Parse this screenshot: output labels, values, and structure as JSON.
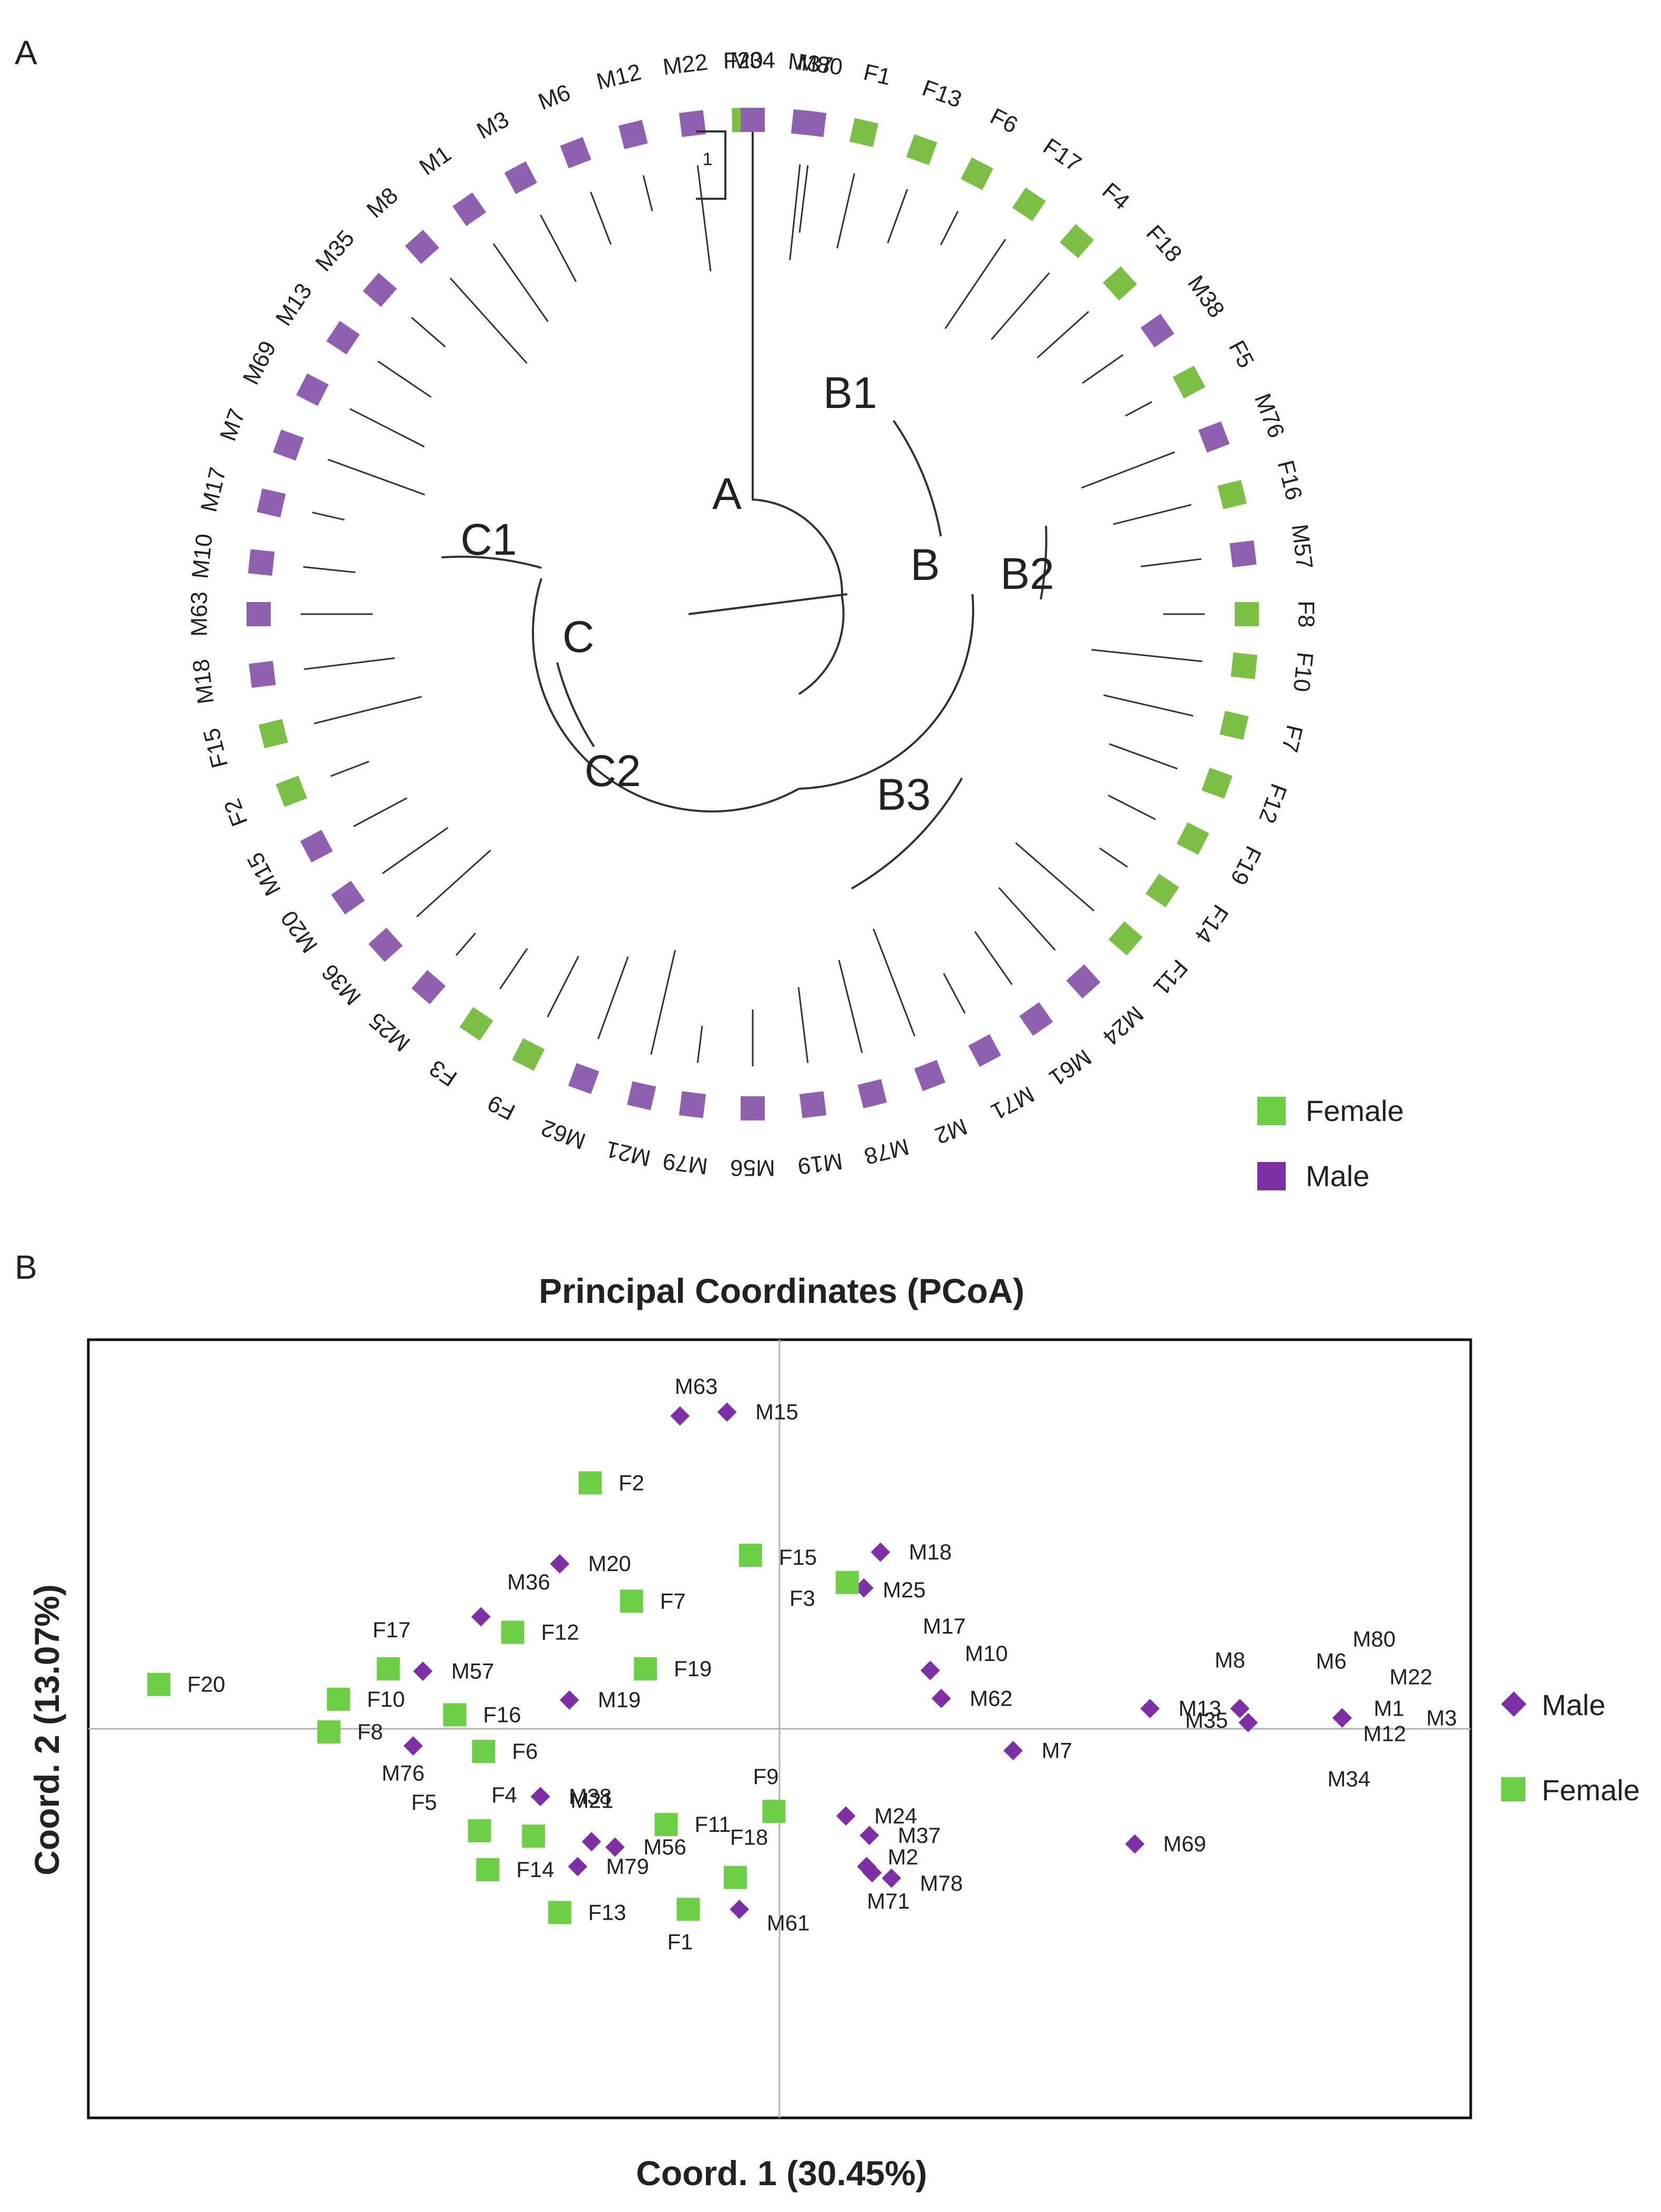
{
  "panels": {
    "a": "A",
    "b": "B"
  },
  "colors": {
    "female": "#6ccf45",
    "male": "#7d2fa6",
    "female_tree": "#7bbf45",
    "male_tree": "#8f5fb0",
    "line": "#333333"
  },
  "scale_bar": "1",
  "legend_a": [
    {
      "label": "Female",
      "group": "female"
    },
    {
      "label": "Male",
      "group": "male"
    }
  ],
  "legend_b": [
    {
      "label": "Male",
      "group": "male"
    },
    {
      "label": "Female",
      "group": "female"
    }
  ],
  "tree": {
    "tips": [
      {
        "label": "F20",
        "angle": -1,
        "group": "female"
      },
      {
        "label": "M37",
        "angle": 6,
        "group": "male"
      },
      {
        "label": "F1",
        "angle": 13,
        "group": "female"
      },
      {
        "label": "F13",
        "angle": 20,
        "group": "female"
      },
      {
        "label": "F6",
        "angle": 27,
        "group": "female"
      },
      {
        "label": "F17",
        "angle": 34,
        "group": "female"
      },
      {
        "label": "F4",
        "angle": 41,
        "group": "female"
      },
      {
        "label": "F18",
        "angle": 48,
        "group": "female"
      },
      {
        "label": "M38",
        "angle": 55,
        "group": "male"
      },
      {
        "label": "F5",
        "angle": 62,
        "group": "female"
      },
      {
        "label": "M76",
        "angle": 69,
        "group": "male"
      },
      {
        "label": "F16",
        "angle": 76,
        "group": "female"
      },
      {
        "label": "M57",
        "angle": 83,
        "group": "male"
      },
      {
        "label": "F8",
        "angle": 90,
        "group": "female"
      },
      {
        "label": "F10",
        "angle": 96,
        "group": "female"
      },
      {
        "label": "F7",
        "angle": 103,
        "group": "female"
      },
      {
        "label": "F12",
        "angle": 110,
        "group": "female"
      },
      {
        "label": "F19",
        "angle": 117,
        "group": "female"
      },
      {
        "label": "F14",
        "angle": 124,
        "group": "female"
      },
      {
        "label": "F11",
        "angle": 131,
        "group": "female"
      },
      {
        "label": "M24",
        "angle": 138,
        "group": "male"
      },
      {
        "label": "M61",
        "angle": 145,
        "group": "male"
      },
      {
        "label": "M71",
        "angle": 152,
        "group": "male"
      },
      {
        "label": "M2",
        "angle": 159,
        "group": "male"
      },
      {
        "label": "M78",
        "angle": 166,
        "group": "male"
      },
      {
        "label": "M19",
        "angle": 173,
        "group": "male"
      },
      {
        "label": "M56",
        "angle": 180,
        "group": "male"
      },
      {
        "label": "M79",
        "angle": 187,
        "group": "male"
      },
      {
        "label": "M21",
        "angle": 193,
        "group": "male"
      },
      {
        "label": "M62",
        "angle": 200,
        "group": "male"
      },
      {
        "label": "F9",
        "angle": 207,
        "group": "female"
      },
      {
        "label": "F3",
        "angle": 214,
        "group": "female"
      },
      {
        "label": "M25",
        "angle": 221,
        "group": "male"
      },
      {
        "label": "M36",
        "angle": 228,
        "group": "male"
      },
      {
        "label": "M20",
        "angle": 235,
        "group": "male"
      },
      {
        "label": "M15",
        "angle": 242,
        "group": "male"
      },
      {
        "label": "F2",
        "angle": 249,
        "group": "female"
      },
      {
        "label": "F15",
        "angle": 256,
        "group": "female"
      },
      {
        "label": "M18",
        "angle": 263,
        "group": "male"
      },
      {
        "label": "M63",
        "angle": 270,
        "group": "male"
      },
      {
        "label": "M10",
        "angle": 276,
        "group": "male"
      },
      {
        "label": "M17",
        "angle": 283,
        "group": "male"
      },
      {
        "label": "M7",
        "angle": 290,
        "group": "male"
      },
      {
        "label": "M69",
        "angle": 297,
        "group": "male"
      },
      {
        "label": "M13",
        "angle": 304,
        "group": "male"
      },
      {
        "label": "M35",
        "angle": 311,
        "group": "male"
      },
      {
        "label": "M8",
        "angle": 318,
        "group": "male"
      },
      {
        "label": "M1",
        "angle": 325,
        "group": "male"
      },
      {
        "label": "M3",
        "angle": 332,
        "group": "male"
      },
      {
        "label": "M6",
        "angle": 339,
        "group": "male"
      },
      {
        "label": "M12",
        "angle": 346,
        "group": "male"
      },
      {
        "label": "M22",
        "angle": 353,
        "group": "male"
      },
      {
        "label": "M34",
        "angle": 360,
        "group": "male"
      },
      {
        "label": "M80",
        "angle": 367,
        "group": "male"
      }
    ],
    "clade_labels": [
      "A",
      "B",
      "B1",
      "B2",
      "B3",
      "C",
      "C1",
      "C2"
    ]
  },
  "chart_data": {
    "type": "scatter",
    "title": "Principal Coordinates (PCoA)",
    "xlabel": "Coord. 1 (30.45%)",
    "ylabel": "Coord. 2 (13.07%)",
    "xlim": [
      -0.5,
      0.5
    ],
    "ylim": [
      -0.5,
      0.5
    ],
    "series": [
      {
        "name": "Male",
        "marker": "diamond",
        "points": [
          {
            "label": "M63",
            "x": -0.072,
            "y": 0.402
          },
          {
            "label": "M15",
            "x": -0.038,
            "y": 0.407
          },
          {
            "label": "M18",
            "x": 0.073,
            "y": 0.227
          },
          {
            "label": "M20",
            "x": -0.159,
            "y": 0.212
          },
          {
            "label": "M36",
            "x": -0.216,
            "y": 0.144
          },
          {
            "label": "M25",
            "x": 0.061,
            "y": 0.181
          },
          {
            "label": "M17",
            "x": 0.109,
            "y": 0.075
          },
          {
            "label": "M10",
            "x": 0.109,
            "y": 0.075
          },
          {
            "label": "M57",
            "x": -0.258,
            "y": 0.074
          },
          {
            "label": "M19",
            "x": -0.152,
            "y": 0.037
          },
          {
            "label": "M62",
            "x": 0.117,
            "y": 0.039
          },
          {
            "label": "M13",
            "x": 0.268,
            "y": 0.026
          },
          {
            "label": "M8",
            "x": 0.333,
            "y": 0.026
          },
          {
            "label": "M35",
            "x": 0.339,
            "y": 0.008
          },
          {
            "label": "M6",
            "x": 0.407,
            "y": 0.014
          },
          {
            "label": "M80",
            "x": 0.407,
            "y": 0.014
          },
          {
            "label": "M22",
            "x": 0.407,
            "y": 0.014
          },
          {
            "label": "M1",
            "x": 0.407,
            "y": 0.014
          },
          {
            "label": "M12",
            "x": 0.407,
            "y": 0.014
          },
          {
            "label": "M3",
            "x": 0.407,
            "y": 0.014
          },
          {
            "label": "M34",
            "x": 0.407,
            "y": 0.014
          },
          {
            "label": "M7",
            "x": 0.169,
            "y": -0.028
          },
          {
            "label": "M76",
            "x": -0.265,
            "y": -0.022
          },
          {
            "label": "M38",
            "x": -0.173,
            "y": -0.087
          },
          {
            "label": "M24",
            "x": 0.048,
            "y": -0.112
          },
          {
            "label": "M37",
            "x": 0.065,
            "y": -0.137
          },
          {
            "label": "M69",
            "x": 0.257,
            "y": -0.148
          },
          {
            "label": "M21",
            "x": -0.136,
            "y": -0.145
          },
          {
            "label": "M56",
            "x": -0.119,
            "y": -0.152
          },
          {
            "label": "M79",
            "x": -0.146,
            "y": -0.177
          },
          {
            "label": "M2",
            "x": 0.063,
            "y": -0.177
          },
          {
            "label": "M71",
            "x": 0.067,
            "y": -0.185
          },
          {
            "label": "M78",
            "x": 0.081,
            "y": -0.192
          },
          {
            "label": "M61",
            "x": -0.029,
            "y": -0.232
          }
        ]
      },
      {
        "name": "Female",
        "marker": "square",
        "points": [
          {
            "label": "F2",
            "x": -0.137,
            "y": 0.316
          },
          {
            "label": "F15",
            "x": -0.021,
            "y": 0.223
          },
          {
            "label": "F3",
            "x": 0.049,
            "y": 0.188
          },
          {
            "label": "F7",
            "x": -0.107,
            "y": 0.164
          },
          {
            "label": "F12",
            "x": -0.193,
            "y": 0.124
          },
          {
            "label": "F17",
            "x": -0.283,
            "y": 0.077
          },
          {
            "label": "F19",
            "x": -0.097,
            "y": 0.077
          },
          {
            "label": "F20",
            "x": -0.449,
            "y": 0.057
          },
          {
            "label": "F10",
            "x": -0.319,
            "y": 0.038
          },
          {
            "label": "F16",
            "x": -0.235,
            "y": 0.018
          },
          {
            "label": "F8",
            "x": -0.326,
            "y": -0.004
          },
          {
            "label": "F6",
            "x": -0.214,
            "y": -0.029
          },
          {
            "label": "F9",
            "x": -0.004,
            "y": -0.106
          },
          {
            "label": "F11",
            "x": -0.082,
            "y": -0.123
          },
          {
            "label": "F5",
            "x": -0.217,
            "y": -0.131
          },
          {
            "label": "F4",
            "x": -0.178,
            "y": -0.138
          },
          {
            "label": "F14",
            "x": -0.211,
            "y": -0.181
          },
          {
            "label": "F18",
            "x": -0.032,
            "y": -0.191
          },
          {
            "label": "F1",
            "x": -0.066,
            "y": -0.232
          },
          {
            "label": "F13",
            "x": -0.159,
            "y": -0.236
          }
        ]
      }
    ]
  }
}
